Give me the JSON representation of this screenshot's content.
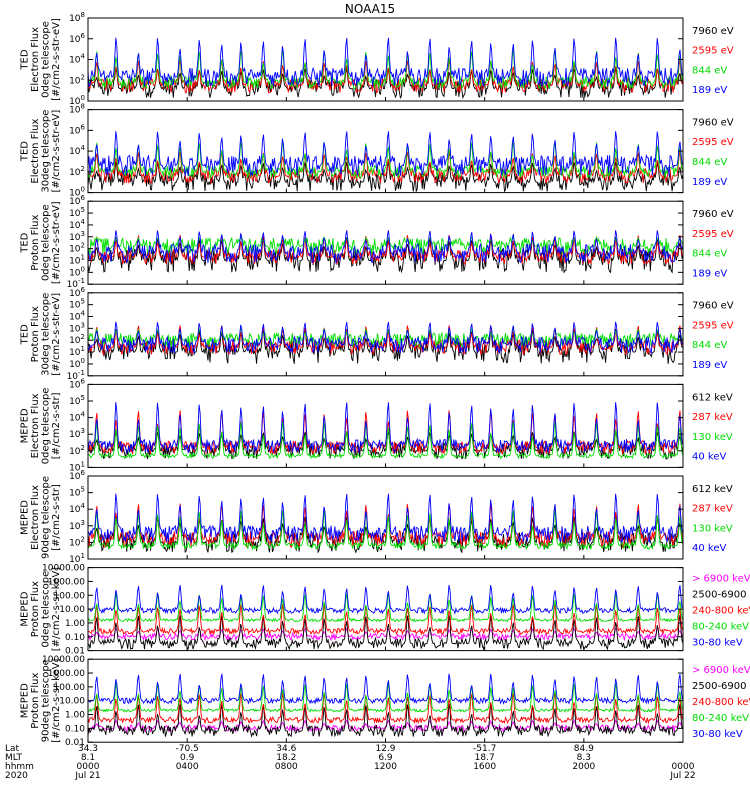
{
  "title": "NOAA15",
  "colors": {
    "black": "#000000",
    "blue": "#0000ff",
    "red": "#ff0000",
    "green": "#00dd00",
    "magenta": "#ff00ff"
  },
  "chart_data": [
    {
      "type": "line",
      "id": "ted-electron-0deg",
      "yscale": "log",
      "ylabel": [
        "TED",
        "Electron Flux",
        "0deg telescope",
        "[#/cm2-s-str-eV]"
      ],
      "yticks": [
        "10^0",
        "10^2",
        "10^4",
        "10^6",
        "10^8"
      ],
      "ylim_exp": [
        0,
        8
      ],
      "series": [
        {
          "name": "7960 eV",
          "color": "black",
          "base": 1.2,
          "peak": 3.2,
          "noise": 0.9
        },
        {
          "name": "2595 eV",
          "color": "red",
          "base": 1.5,
          "peak": 4.0,
          "noise": 0.7
        },
        {
          "name": "844 eV",
          "color": "green",
          "base": 1.8,
          "peak": 5.0,
          "noise": 0.6
        },
        {
          "name": "189 eV",
          "color": "blue",
          "base": 2.3,
          "peak": 6.2,
          "noise": 0.9
        }
      ]
    },
    {
      "type": "line",
      "id": "ted-electron-30deg",
      "yscale": "log",
      "ylabel": [
        "TED",
        "Electron Flux",
        "30deg telescope",
        "[#/cm2-s-str-eV]"
      ],
      "yticks": [
        "10^0",
        "10^2",
        "10^4",
        "10^6",
        "10^8"
      ],
      "ylim_exp": [
        0,
        8
      ],
      "series": [
        {
          "name": "7960 eV",
          "color": "black",
          "base": 1.0,
          "peak": 3.0,
          "noise": 0.9
        },
        {
          "name": "2595 eV",
          "color": "red",
          "base": 1.6,
          "peak": 4.0,
          "noise": 0.7
        },
        {
          "name": "844 eV",
          "color": "green",
          "base": 2.0,
          "peak": 5.0,
          "noise": 0.6
        },
        {
          "name": "189 eV",
          "color": "blue",
          "base": 2.6,
          "peak": 6.0,
          "noise": 1.0
        }
      ]
    },
    {
      "type": "line",
      "id": "ted-proton-0deg",
      "yscale": "log",
      "ylabel": [
        "TED",
        "Proton Flux",
        "0deg telescope",
        "[#/cm2-s-str-eV]"
      ],
      "yticks": [
        "10^-1",
        "10^0",
        "10^1",
        "10^2",
        "10^3",
        "10^4",
        "10^5",
        "10^6"
      ],
      "ylim_exp": [
        -1,
        6
      ],
      "series": [
        {
          "name": "7960 eV",
          "color": "black",
          "base": 1.0,
          "peak": 3.0,
          "noise": 1.0
        },
        {
          "name": "2595 eV",
          "color": "red",
          "base": 1.3,
          "peak": 3.2,
          "noise": 0.6
        },
        {
          "name": "844 eV",
          "color": "green",
          "base": 2.2,
          "peak": 3.0,
          "noise": 0.7
        },
        {
          "name": "189 eV",
          "color": "blue",
          "base": 1.6,
          "peak": 3.6,
          "noise": 0.8
        }
      ]
    },
    {
      "type": "line",
      "id": "ted-proton-30deg",
      "yscale": "log",
      "ylabel": [
        "TED",
        "Proton Flux",
        "30deg telescope",
        "[#/cm2-s-str-eV]"
      ],
      "yticks": [
        "10^-1",
        "10^0",
        "10^1",
        "10^2",
        "10^3",
        "10^4",
        "10^5",
        "10^6"
      ],
      "ylim_exp": [
        -1,
        6
      ],
      "series": [
        {
          "name": "7960 eV",
          "color": "black",
          "base": 1.0,
          "peak": 3.0,
          "noise": 1.0
        },
        {
          "name": "2595 eV",
          "color": "red",
          "base": 1.4,
          "peak": 3.3,
          "noise": 0.6
        },
        {
          "name": "844 eV",
          "color": "green",
          "base": 2.0,
          "peak": 3.0,
          "noise": 0.6
        },
        {
          "name": "189 eV",
          "color": "blue",
          "base": 1.6,
          "peak": 3.6,
          "noise": 0.7
        }
      ]
    },
    {
      "type": "line",
      "id": "meped-electron-0deg",
      "yscale": "log",
      "ylabel": [
        "MEPED",
        "Electron Flux",
        "0deg telescope",
        "[#/cm2-s-str]"
      ],
      "yticks": [
        "10^1",
        "10^2",
        "10^3",
        "10^4",
        "10^5",
        "10^6"
      ],
      "ylim_exp": [
        1,
        6
      ],
      "series": [
        {
          "name": "612 keV",
          "color": "black",
          "base": 2.0,
          "peak": 3.2,
          "noise": 0.5
        },
        {
          "name": "287 keV",
          "color": "red",
          "base": 2.2,
          "peak": 4.5,
          "noise": 0.4
        },
        {
          "name": "130 keV",
          "color": "green",
          "base": 1.7,
          "peak": 3.8,
          "noise": 0.15
        },
        {
          "name": "40 keV",
          "color": "blue",
          "base": 2.3,
          "peak": 5.0,
          "noise": 0.4
        }
      ]
    },
    {
      "type": "line",
      "id": "meped-electron-90deg",
      "yscale": "log",
      "ylabel": [
        "MEPED",
        "Electron Flux",
        "90deg telescope",
        "[#/cm2-s-str]"
      ],
      "yticks": [
        "10^1",
        "10^2",
        "10^3",
        "10^4",
        "10^5",
        "10^6"
      ],
      "ylim_exp": [
        1,
        6
      ],
      "series": [
        {
          "name": "612 keV",
          "color": "black",
          "base": 2.0,
          "peak": 3.6,
          "noise": 0.6
        },
        {
          "name": "287 keV",
          "color": "red",
          "base": 2.2,
          "peak": 4.4,
          "noise": 0.5
        },
        {
          "name": "130 keV",
          "color": "green",
          "base": 1.8,
          "peak": 4.0,
          "noise": 0.2
        },
        {
          "name": "40 keV",
          "color": "blue",
          "base": 2.5,
          "peak": 5.0,
          "noise": 0.5
        }
      ]
    },
    {
      "type": "line",
      "id": "meped-proton-0deg",
      "yscale": "log",
      "ylabel": [
        "MEPED",
        "Proton Flux",
        "0deg telescope",
        "[#/cm2-s-sr-keV]"
      ],
      "yticks": [
        "0.01",
        "0.10",
        "1.00",
        "10.00",
        "100.00",
        "1000.00",
        "10000.00"
      ],
      "ylim_exp": [
        -2,
        4
      ],
      "series": [
        {
          "name": "> 6900 keV",
          "color": "magenta",
          "base": -1.0,
          "peak": -0.4,
          "noise": 0.25
        },
        {
          "name": "2500-6900",
          "color": "black",
          "base": -1.5,
          "peak": 0.6,
          "noise": 0.4
        },
        {
          "name": "240-800 keV",
          "color": "red",
          "base": -0.6,
          "peak": 1.4,
          "noise": 0.2
        },
        {
          "name": "80-240 keV",
          "color": "green",
          "base": 0.2,
          "peak": 2.2,
          "noise": 0.1
        },
        {
          "name": "30-80 keV",
          "color": "blue",
          "base": 0.9,
          "peak": 2.8,
          "noise": 0.2
        }
      ]
    },
    {
      "type": "line",
      "id": "meped-proton-90deg",
      "yscale": "log",
      "ylabel": [
        "MEPED",
        "Proton Flux",
        "90deg telescope",
        "[#/cm2-s-sr-keV]"
      ],
      "yticks": [
        "0.01",
        "0.10",
        "1.00",
        "10.00",
        "100.00",
        "1000.00",
        "10000.00"
      ],
      "ylim_exp": [
        -2,
        4
      ],
      "series": [
        {
          "name": "> 6900 keV",
          "color": "magenta",
          "base": -1.0,
          "peak": -0.4,
          "noise": 0.25
        },
        {
          "name": "2500-6900",
          "color": "black",
          "base": -1.2,
          "peak": 0.8,
          "noise": 0.4
        },
        {
          "name": "240-800 keV",
          "color": "red",
          "base": -0.4,
          "peak": 1.6,
          "noise": 0.2
        },
        {
          "name": "80-240 keV",
          "color": "green",
          "base": 0.3,
          "peak": 2.3,
          "noise": 0.1
        },
        {
          "name": "30-80 keV",
          "color": "blue",
          "base": 1.0,
          "peak": 3.0,
          "noise": 0.2
        }
      ]
    }
  ],
  "xaxis": {
    "row_labels": [
      "Lat",
      "MLT",
      "hhmm",
      "2020"
    ],
    "ticks": [
      {
        "t": 0,
        "lat": "34.3",
        "mlt": "8.1",
        "hhmm": "0000",
        "date": "Jul 21"
      },
      {
        "t": 4,
        "lat": "-70.5",
        "mlt": "0.9",
        "hhmm": "0400",
        "date": ""
      },
      {
        "t": 8,
        "lat": "34.6",
        "mlt": "18.2",
        "hhmm": "0800",
        "date": ""
      },
      {
        "t": 12,
        "lat": "12.9",
        "mlt": "6.9",
        "hhmm": "1200",
        "date": ""
      },
      {
        "t": 16,
        "lat": "-51.7",
        "mlt": "18.7",
        "hhmm": "1600",
        "date": ""
      },
      {
        "t": 20,
        "lat": "84.9",
        "mlt": "8.3",
        "hhmm": "2000",
        "date": ""
      },
      {
        "t": 24,
        "lat": "",
        "mlt": "",
        "hhmm": "0000",
        "date": "Jul 22"
      }
    ],
    "range_hours": [
      0,
      24
    ]
  }
}
